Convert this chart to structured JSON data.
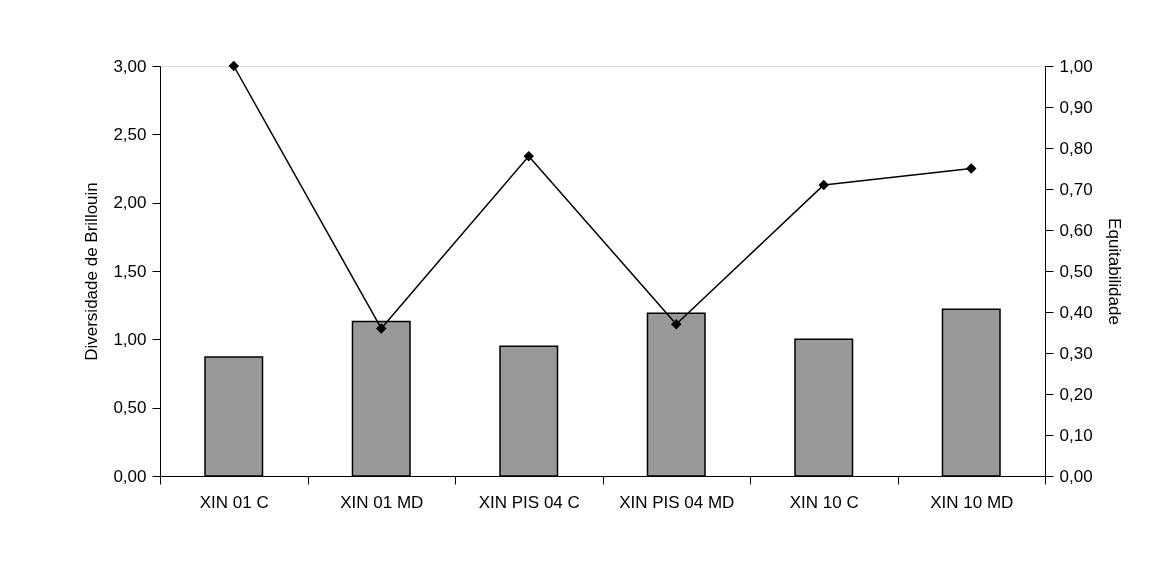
{
  "chart_data": {
    "type": "bar",
    "categories": [
      "XIN 01 C",
      "XIN 01 MD",
      "XIN PIS 04 C",
      "XIN PIS 04 MD",
      "XIN 10 C",
      "XIN 10 MD"
    ],
    "series": [
      {
        "color": "#999999",
        "values": [
          0.87,
          1.13,
          0.95,
          1.19,
          1.0,
          1.22
        ]
      },
      {
        "type": "line",
        "axis": "y2",
        "color": "#000000",
        "values": [
          1.0,
          0.36,
          0.78,
          0.37,
          0.71,
          0.75
        ]
      }
    ],
    "ylabel": "Diversidade de Brillouin",
    "y2label": "Equitabilidade",
    "ylim": [
      0,
      3
    ],
    "yticks": [
      {
        "value": 0,
        "label": "0,00"
      },
      {
        "value": 0.5,
        "label": "0,50"
      },
      {
        "value": 1,
        "label": "1,00"
      },
      {
        "value": 1.5,
        "label": "1,50"
      },
      {
        "value": 2,
        "label": "2,00"
      },
      {
        "value": 2.5,
        "label": "2,50"
      },
      {
        "value": 3,
        "label": "3,00"
      }
    ],
    "y2lim": [
      0,
      1
    ],
    "y2ticks": [
      {
        "value": 0,
        "label": "0,00"
      },
      {
        "value": 0.1,
        "label": "0,10"
      },
      {
        "value": 0.2,
        "label": "0,20"
      },
      {
        "value": 0.3,
        "label": "0,30"
      },
      {
        "value": 0.4,
        "label": "0,40"
      },
      {
        "value": 0.5,
        "label": "0,50"
      },
      {
        "value": 0.6,
        "label": "0,60"
      },
      {
        "value": 0.7,
        "label": "0,70"
      },
      {
        "value": 0.8,
        "label": "0,80"
      },
      {
        "value": 0.9,
        "label": "0,90"
      },
      {
        "value": 1,
        "label": "1,00"
      }
    ],
    "marker": "diamond",
    "grid": false
  }
}
